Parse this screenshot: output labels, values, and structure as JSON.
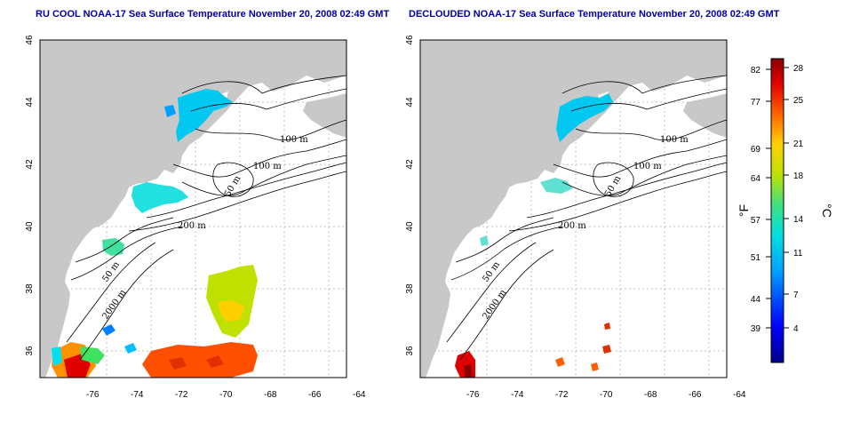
{
  "titles": {
    "left": "RU COOL NOAA-17 Sea Surface Temperature November 20, 2008 02:49 GMT",
    "right": "DECLOUDED NOAA-17 Sea Surface Temperature November 20, 2008 02:49 GMT"
  },
  "axes": {
    "x_ticks": [
      "-76",
      "-74",
      "-72",
      "-70",
      "-68",
      "-66",
      "-64"
    ],
    "y_ticks": [
      "46",
      "44",
      "42",
      "40",
      "38",
      "36"
    ]
  },
  "contour_labels": [
    "100 m",
    "100 m",
    "50 m",
    "200 m",
    "50 m",
    "2000 m"
  ],
  "colorbar": {
    "unit_f": "°F",
    "unit_c": "°C",
    "f_ticks": [
      "82",
      "77",
      "69",
      "64",
      "57",
      "51",
      "44",
      "39"
    ],
    "c_ticks": [
      "28",
      "25",
      "21",
      "18",
      "14",
      "11",
      "7",
      "4"
    ]
  },
  "colors": {
    "land": "#c8c8c8",
    "title": "#0000aa",
    "grid": "#aaaaaa"
  }
}
